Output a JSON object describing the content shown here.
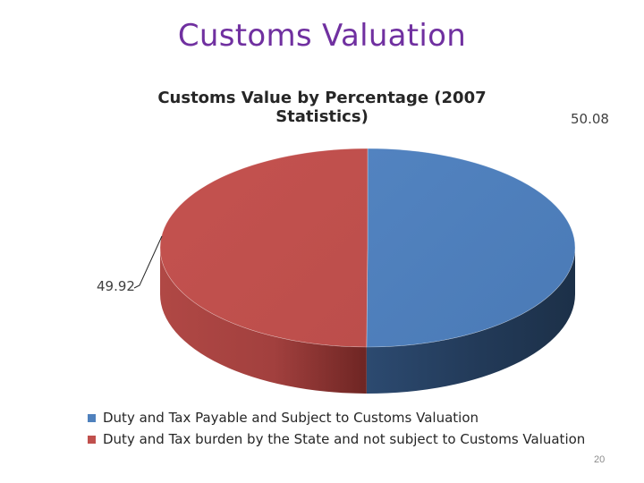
{
  "slide": {
    "title": "Customs Valuation",
    "page_number": "20"
  },
  "chart_data": {
    "type": "pie",
    "title": "Customs Value by Percentage (2007 Statistics)",
    "series": [
      {
        "name": "Duty and Tax Payable and Subject to Customs Valuation",
        "value": 50.08,
        "label": "50.08",
        "color": "#4f81bd"
      },
      {
        "name": "Duty and Tax burden by the State and not subject to Customs Valuation",
        "value": 49.92,
        "label": "49.92",
        "color": "#c0504d"
      }
    ],
    "legend_position": "bottom",
    "style": "3d"
  }
}
